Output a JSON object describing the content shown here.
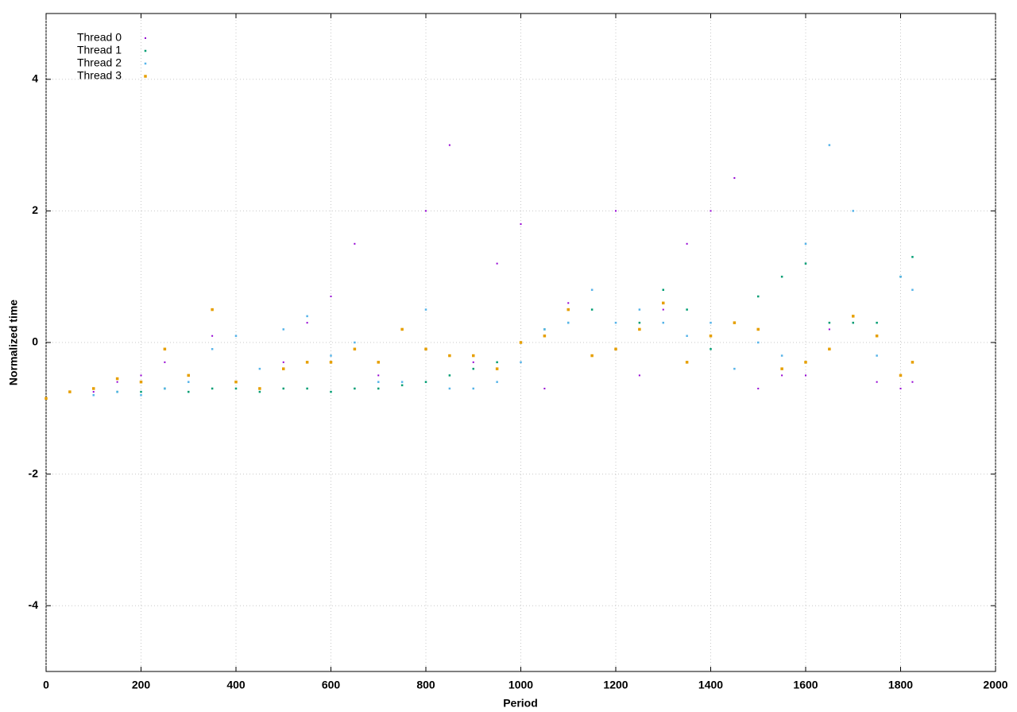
{
  "chart_data": {
    "type": "scatter",
    "xlabel": "Period",
    "ylabel": "Normalized time",
    "xlim": [
      0,
      2000
    ],
    "xticks": [
      0,
      200,
      400,
      600,
      800,
      1000,
      1200,
      1400,
      1600,
      1800,
      2000
    ],
    "ylim": [
      -5,
      5
    ],
    "yticks": [
      -4,
      -2,
      0,
      2,
      4
    ],
    "grid": true,
    "legend": "top-left",
    "x": [
      0,
      50,
      100,
      150,
      200,
      250,
      300,
      350,
      400,
      450,
      500,
      550,
      600,
      650,
      700,
      750,
      800,
      850,
      900,
      950,
      1000,
      1050,
      1100,
      1150,
      1200,
      1250,
      1300,
      1350,
      1400,
      1450,
      1500,
      1550,
      1600,
      1650,
      1700,
      1750,
      1800,
      1825
    ],
    "series": [
      {
        "name": "Thread 0",
        "color": "#9400d3",
        "values": [
          -0.85,
          -0.75,
          -0.75,
          -0.6,
          -0.5,
          -0.3,
          -0.5,
          0.1,
          -0.6,
          -0.7,
          -0.3,
          0.3,
          0.7,
          1.5,
          -0.5,
          0.2,
          2.0,
          3.0,
          -0.3,
          1.2,
          1.8,
          -0.7,
          0.6,
          0.8,
          2.0,
          -0.5,
          0.5,
          1.5,
          2.0,
          2.5,
          -0.7,
          -0.5,
          -0.5,
          0.2,
          0.3,
          -0.6,
          -0.7,
          -0.6
        ]
      },
      {
        "name": "Thread 1",
        "color": "#009e73",
        "values": [
          -0.85,
          -0.75,
          -0.8,
          -0.75,
          -0.75,
          -0.7,
          -0.75,
          -0.7,
          -0.7,
          -0.75,
          -0.7,
          -0.7,
          -0.75,
          -0.7,
          -0.7,
          -0.65,
          -0.6,
          -0.5,
          -0.4,
          -0.3,
          0,
          0.2,
          0.3,
          0.5,
          -0.1,
          0.3,
          0.8,
          0.5,
          -0.1,
          0.3,
          0.7,
          1.0,
          1.2,
          0.3,
          0.3,
          0.3,
          1.0,
          1.3
        ]
      },
      {
        "name": "Thread 2",
        "color": "#56b4e9",
        "values": [
          -0.85,
          -0.75,
          -0.8,
          -0.75,
          -0.8,
          -0.7,
          -0.6,
          -0.1,
          0.1,
          -0.4,
          0.2,
          0.4,
          -0.2,
          0.0,
          -0.6,
          -0.6,
          0.5,
          -0.7,
          -0.7,
          -0.6,
          -0.3,
          0.2,
          0.3,
          0.8,
          0.3,
          0.5,
          0.3,
          0.1,
          0.3,
          -0.4,
          0.0,
          -0.2,
          1.5,
          3.0,
          2.0,
          -0.2,
          1.0,
          0.8
        ]
      },
      {
        "name": "Thread 3",
        "color": "#e69f00",
        "values": [
          -0.85,
          -0.75,
          -0.7,
          -0.55,
          -0.6,
          -0.1,
          -0.5,
          0.5,
          -0.6,
          -0.7,
          -0.4,
          -0.3,
          -0.3,
          -0.1,
          -0.3,
          0.2,
          -0.1,
          -0.2,
          -0.2,
          -0.4,
          0.0,
          0.1,
          0.5,
          -0.2,
          -0.1,
          0.2,
          0.6,
          -0.3,
          0.1,
          0.3,
          0.2,
          -0.4,
          -0.3,
          -0.1,
          0.4,
          0.1,
          -0.5,
          -0.3
        ]
      }
    ]
  }
}
